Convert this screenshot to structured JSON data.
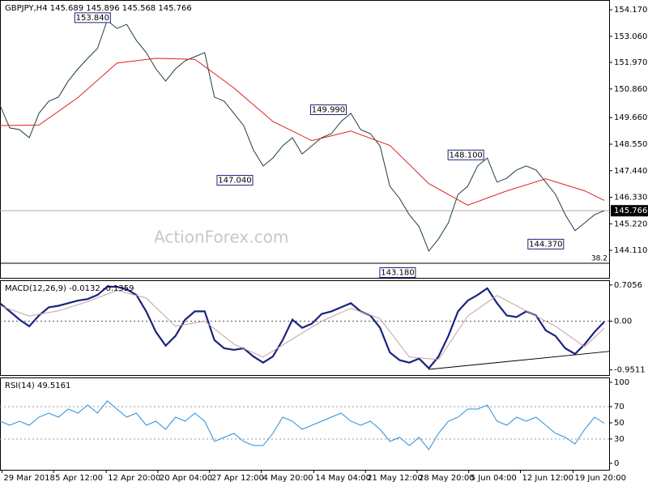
{
  "chart_data": [
    {
      "type": "line",
      "title": "GBPJPY,H4 145.689 145.896 145.568 145.766",
      "watermark": "ActionForex.com",
      "xlim": [
        0,
        62.5
      ],
      "ylim": [
        142.96,
        154.58
      ],
      "yticks": [
        {
          "value": 154.17,
          "label": "154.170"
        },
        {
          "value": 153.06,
          "label": "153.060"
        },
        {
          "value": 151.97,
          "label": "151.970"
        },
        {
          "value": 150.86,
          "label": "150.860"
        },
        {
          "value": 149.66,
          "label": "149.660"
        },
        {
          "value": 148.55,
          "label": "148.550"
        },
        {
          "value": 147.44,
          "label": "147.440"
        },
        {
          "value": 146.33,
          "label": "146.330"
        },
        {
          "value": 145.22,
          "label": "145.220"
        },
        {
          "value": 144.11,
          "label": "144.110"
        }
      ],
      "xticks": [
        {
          "value": 0.2,
          "label": "29 Mar 2018"
        },
        {
          "value": 5.5,
          "label": "5 Apr 12:00"
        },
        {
          "value": 10.9,
          "label": "12 Apr 20:00"
        },
        {
          "value": 16.2,
          "label": "20 Apr 04:00"
        },
        {
          "value": 21.5,
          "label": "27 Apr 12:00"
        },
        {
          "value": 26.8,
          "label": "4 May 20:00"
        },
        {
          "value": 32.2,
          "label": "14 May 04:00"
        },
        {
          "value": 37.5,
          "label": "21 May 12:00"
        },
        {
          "value": 42.8,
          "label": "28 May 20:00"
        },
        {
          "value": 48.1,
          "label": "5 Jun 04:00"
        },
        {
          "value": 53.4,
          "label": "12 Jun 12:00"
        },
        {
          "value": 58.8,
          "label": "19 Jun 20:00"
        }
      ],
      "series": [
        {
          "color": "#1f3f3f",
          "x": [
            0,
            1,
            2,
            3,
            4,
            5,
            6,
            7,
            8,
            9,
            10,
            11,
            12,
            13,
            14,
            15,
            16,
            17,
            18,
            19,
            20,
            21,
            22,
            23,
            24,
            25,
            26,
            27,
            28,
            29,
            30,
            31,
            32,
            33,
            34,
            35,
            36,
            37,
            38,
            39,
            40,
            41,
            42,
            43,
            44,
            45,
            46,
            47,
            48,
            49,
            50,
            51,
            52,
            53,
            54,
            55,
            56,
            57,
            58,
            59,
            60,
            61,
            62
          ],
          "values": [
            150.18,
            149.23,
            149.16,
            148.82,
            149.84,
            150.35,
            150.52,
            151.19,
            151.7,
            152.14,
            152.55,
            153.73,
            153.39,
            153.56,
            152.89,
            152.38,
            151.7,
            151.19,
            151.7,
            152.04,
            152.21,
            152.38,
            150.52,
            150.35,
            149.84,
            149.33,
            148.31,
            147.64,
            147.97,
            148.48,
            148.82,
            148.14,
            148.48,
            148.82,
            148.99,
            149.5,
            149.84,
            149.16,
            148.99,
            148.48,
            146.79,
            146.28,
            145.6,
            145.1,
            144.08,
            144.59,
            145.26,
            146.45,
            146.79,
            147.64,
            147.97,
            146.96,
            147.13,
            147.47,
            147.64,
            147.47,
            146.96,
            146.45,
            145.6,
            144.93,
            145.26,
            145.6,
            145.77
          ]
        },
        {
          "color": "#e02020",
          "x": [
            0,
            4,
            8,
            12,
            16,
            20,
            24,
            28,
            32,
            36,
            40,
            44,
            48,
            52,
            56,
            60,
            62
          ],
          "values": [
            149.33,
            149.35,
            150.5,
            151.94,
            152.14,
            152.1,
            150.9,
            149.5,
            148.7,
            149.1,
            148.5,
            146.9,
            146.0,
            146.6,
            147.1,
            146.6,
            146.2
          ]
        }
      ],
      "annotations": [
        {
          "x": 9.5,
          "value": 153.84,
          "label": "153.840"
        },
        {
          "x": 24.1,
          "value": 147.04,
          "label": "147.040"
        },
        {
          "x": 33.7,
          "value": 149.99,
          "label": "149.990"
        },
        {
          "x": 40.8,
          "value": 143.18,
          "label": "143.180"
        },
        {
          "x": 47.8,
          "value": 148.1,
          "label": "148.100"
        },
        {
          "x": 56.0,
          "value": 144.37,
          "label": "144.370"
        }
      ],
      "current_price": {
        "value": 145.766,
        "label": "145.766"
      },
      "fib_line": {
        "level": 38.2,
        "price": 143.57
      }
    },
    {
      "type": "line",
      "title": "MACD(12,26,9) -0.0132 -0.1359",
      "xlim": [
        0,
        62.5
      ],
      "ylim": [
        -1.051,
        0.797
      ],
      "yticks": [
        0.7056,
        {
          "value": 0,
          "label": "0.00"
        },
        -0.9511
      ],
      "series": [
        {
          "color": "#1a237e",
          "x": [
            0,
            1,
            2,
            3,
            4,
            5,
            6,
            7,
            8,
            9,
            10,
            11,
            12,
            13,
            14,
            15,
            16,
            17,
            18,
            19,
            20,
            21,
            22,
            23,
            24,
            25,
            26,
            27,
            28,
            29,
            30,
            31,
            32,
            33,
            34,
            35,
            36,
            37,
            38,
            39,
            40,
            41,
            42,
            43,
            44,
            45,
            46,
            47,
            48,
            49,
            50,
            51,
            52,
            53,
            54,
            55,
            56,
            57,
            58,
            59,
            60,
            61,
            62
          ],
          "values": [
            0.35,
            0.19,
            0.03,
            -0.1,
            0.11,
            0.27,
            0.3,
            0.35,
            0.4,
            0.43,
            0.51,
            0.67,
            0.67,
            0.62,
            0.51,
            0.19,
            -0.21,
            -0.48,
            -0.29,
            0.03,
            0.19,
            0.19,
            -0.37,
            -0.53,
            -0.56,
            -0.53,
            -0.69,
            -0.81,
            -0.69,
            -0.37,
            0.03,
            -0.13,
            -0.05,
            0.14,
            0.19,
            0.27,
            0.35,
            0.19,
            0.11,
            -0.13,
            -0.61,
            -0.76,
            -0.81,
            -0.73,
            -0.92,
            -0.69,
            -0.29,
            0.19,
            0.4,
            0.51,
            0.64,
            0.35,
            0.11,
            0.08,
            0.19,
            0.11,
            -0.18,
            -0.29,
            -0.53,
            -0.64,
            -0.45,
            -0.21,
            -0.0132
          ]
        },
        {
          "color": "#c8a0a0",
          "x": [
            0,
            3,
            6,
            9,
            12,
            15,
            18,
            21,
            24,
            27,
            30,
            33,
            36,
            39,
            42,
            45,
            48,
            51,
            54,
            57,
            60,
            62
          ],
          "values": [
            0.3,
            0.1,
            0.2,
            0.38,
            0.6,
            0.45,
            -0.1,
            0.0,
            -0.45,
            -0.7,
            -0.35,
            0.0,
            0.25,
            0.05,
            -0.7,
            -0.75,
            0.1,
            0.5,
            0.2,
            -0.1,
            -0.5,
            -0.1359
          ]
        }
      ],
      "trendline": {
        "x": [
          44,
          62.5
        ],
        "values": [
          -0.94,
          -0.59
        ]
      }
    },
    {
      "type": "line",
      "title": "RSI(14) 49.5161",
      "xlim": [
        0,
        62.5
      ],
      "ylim": [
        -8,
        106
      ],
      "yticks": [
        100,
        70,
        50,
        30,
        0
      ],
      "levels": [
        70,
        30
      ],
      "series": [
        {
          "color": "#2a8fd8",
          "x": [
            0,
            1,
            2,
            3,
            4,
            5,
            6,
            7,
            8,
            9,
            10,
            11,
            12,
            13,
            14,
            15,
            16,
            17,
            18,
            19,
            20,
            21,
            22,
            23,
            24,
            25,
            26,
            27,
            28,
            29,
            30,
            31,
            32,
            33,
            34,
            35,
            36,
            37,
            38,
            39,
            40,
            41,
            42,
            43,
            44,
            45,
            46,
            47,
            48,
            49,
            50,
            51,
            52,
            53,
            54,
            55,
            56,
            57,
            58,
            59,
            60,
            61,
            62
          ],
          "values": [
            52,
            47,
            52,
            47,
            57,
            62,
            57,
            67,
            62,
            72,
            62,
            77,
            67,
            57,
            62,
            47,
            52,
            42,
            57,
            52,
            62,
            52,
            27,
            32,
            37,
            27,
            22,
            22,
            37,
            57,
            52,
            42,
            47,
            52,
            57,
            62,
            52,
            47,
            52,
            42,
            27,
            32,
            22,
            32,
            17,
            37,
            52,
            57,
            67,
            67,
            72,
            52,
            47,
            57,
            52,
            57,
            47,
            37,
            32,
            24,
            42,
            57,
            49.5161
          ]
        }
      ]
    }
  ]
}
